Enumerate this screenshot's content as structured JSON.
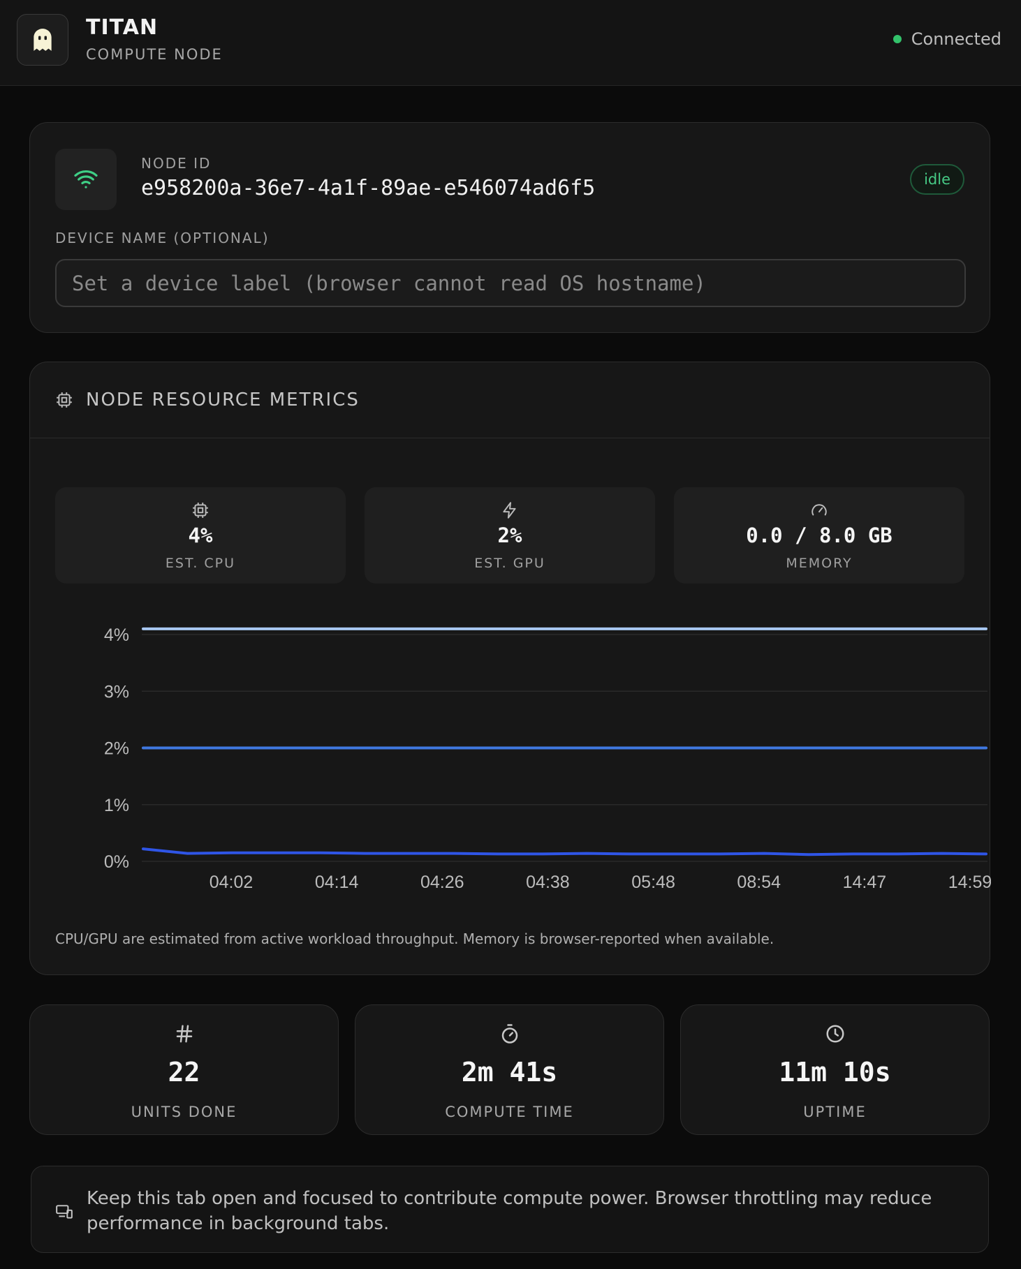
{
  "header": {
    "title": "TITAN",
    "subtitle": "COMPUTE NODE",
    "status": "Connected",
    "status_color": "#33c26b",
    "logo_icon": "ghost-icon"
  },
  "node": {
    "id_label": "NODE ID",
    "id_value": "e958200a-36e7-4a1f-89ae-e546074ad6f5",
    "state_badge": "idle",
    "device_name_label": "DEVICE NAME (OPTIONAL)",
    "device_name_value": "",
    "device_name_placeholder": "Set a device label (browser cannot read OS hostname)"
  },
  "metrics": {
    "title": "NODE RESOURCE METRICS",
    "cpu": {
      "value": "4%",
      "label": "EST. CPU",
      "icon": "cpu-icon"
    },
    "gpu": {
      "value": "2%",
      "label": "EST. GPU",
      "icon": "lightning-icon"
    },
    "memory": {
      "value": "0.0 / 8.0 GB",
      "label": "MEMORY",
      "icon": "gauge-icon"
    },
    "note": "CPU/GPU are estimated from active workload throughput. Memory is browser-reported when available."
  },
  "chart_data": {
    "type": "line",
    "title": "",
    "xlabel": "",
    "ylabel": "",
    "ylim": [
      0,
      4
    ],
    "y_ticks": [
      "4%",
      "3%",
      "2%",
      "1%",
      "0%"
    ],
    "x_ticks": [
      "04:02",
      "04:14",
      "04:26",
      "04:38",
      "05:48",
      "08:54",
      "14:47",
      "14:59"
    ],
    "grid": true,
    "series": [
      {
        "color": "#a9c8f2",
        "values": [
          4.1,
          4.1,
          4.1,
          4.1,
          4.1,
          4.1,
          4.1,
          4.1,
          4.1,
          4.1,
          4.1,
          4.1,
          4.1,
          4.1,
          4.1,
          4.1
        ]
      },
      {
        "color": "#3f78e0",
        "values": [
          2.0,
          2.0,
          2.0,
          2.0,
          2.0,
          2.0,
          2.0,
          2.0,
          2.0,
          2.0,
          2.0,
          2.0,
          2.0,
          2.0,
          2.0,
          2.0
        ]
      },
      {
        "color": "#2f55e6",
        "values": [
          0.22,
          0.14,
          0.15,
          0.15,
          0.15,
          0.14,
          0.14,
          0.14,
          0.13,
          0.13,
          0.14,
          0.13,
          0.13,
          0.13,
          0.14,
          0.12,
          0.13,
          0.13,
          0.14,
          0.13
        ]
      }
    ]
  },
  "stats": {
    "units": {
      "value": "22",
      "label": "UNITS DONE",
      "icon": "hash-icon"
    },
    "compute": {
      "value": "2m 41s",
      "label": "COMPUTE TIME",
      "icon": "stopwatch-icon"
    },
    "uptime": {
      "value": "11m 10s",
      "label": "UPTIME",
      "icon": "clock-icon"
    }
  },
  "notice": {
    "text": "Keep this tab open and focused to contribute compute power. Browser throttling may reduce performance in background tabs.",
    "icon": "devices-icon"
  }
}
